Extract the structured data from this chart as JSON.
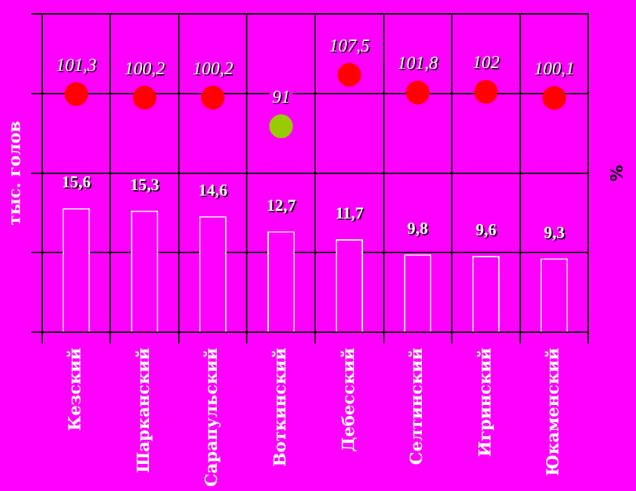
{
  "chart_data": {
    "type": "bar",
    "ylabel": "тыс. голов",
    "y2label": "%",
    "categories": [
      "Кезский",
      "Шарканский",
      "Сарапульский",
      "Воткинский",
      "Дебесский",
      "Селтинский",
      "Игринский",
      "Юкаменский"
    ],
    "series": [
      {
        "color": "#ff00ff",
        "values": [
          15.6,
          15.3,
          14.6,
          12.7,
          11.7,
          9.8,
          9.6,
          9.3
        ],
        "value_labels": [
          "15,6",
          "15,3",
          "14,6",
          "12,7",
          "11,7",
          "9,8",
          "9,6",
          "9,3"
        ]
      },
      {
        "type": "scatter",
        "axis": "y2",
        "colors": [
          "#ff0000",
          "#ff0000",
          "#ff0000",
          "#99cc00",
          "#ff0000",
          "#ff0000",
          "#ff0000",
          "#ff0000"
        ],
        "values": [
          101.3,
          100.2,
          100.2,
          91,
          107.5,
          101.8,
          102,
          100.1
        ],
        "value_labels": [
          "101,3",
          "100,2",
          "100,2",
          "91",
          "107,5",
          "101,8",
          "102",
          "100,1"
        ]
      }
    ],
    "ylim": [
      0,
      40
    ],
    "yticks": [
      {
        "value": 0,
        "label": null
      },
      {
        "value": 10,
        "label": null
      },
      {
        "value": 20,
        "label": null
      },
      {
        "value": 30,
        "label": null
      },
      {
        "value": 40,
        "label": null
      }
    ],
    "y2lim": [
      25,
      127
    ],
    "tick_labels": "x",
    "grid": true,
    "legend": false,
    "marker": "circle"
  }
}
